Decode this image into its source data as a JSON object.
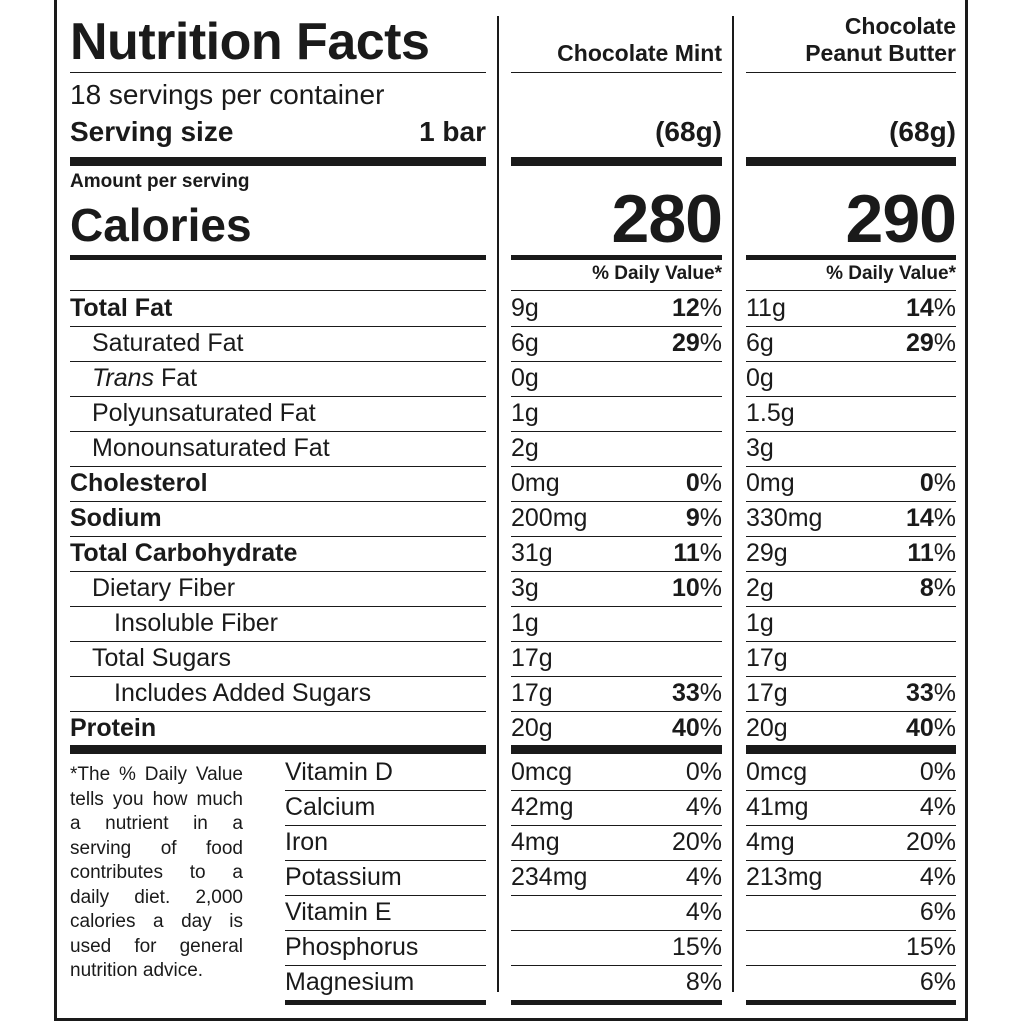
{
  "label": {
    "title": "Nutrition Facts",
    "servings_per_container": "18 servings per container",
    "serving_size_label": "Serving size",
    "serving_size_value": "1 bar",
    "amount_per_serving": "Amount per serving",
    "calories_label": "Calories",
    "daily_value_header": "% Daily Value*"
  },
  "products": [
    {
      "name": "Chocolate Mint",
      "serving_size": "(68g)",
      "calories": "280"
    },
    {
      "name_line1": "Chocolate",
      "name_line2": "Peanut Butter",
      "serving_size": "(68g)",
      "calories": "290"
    }
  ],
  "nutrients": [
    {
      "name": "Total Fat",
      "a_amt": "9g",
      "a_dv": "12",
      "b_amt": "11g",
      "b_dv": "14"
    },
    {
      "name": "Saturated Fat",
      "a_amt": "6g",
      "a_dv": "29",
      "b_amt": "6g",
      "b_dv": "29"
    },
    {
      "name_italic": "Trans",
      "name_rest": " Fat",
      "a_amt": "0g",
      "b_amt": "0g"
    },
    {
      "name": "Polyunsaturated Fat",
      "a_amt": "1g",
      "b_amt": "1.5g"
    },
    {
      "name": "Monounsaturated Fat",
      "a_amt": "2g",
      "b_amt": "3g"
    },
    {
      "name": "Cholesterol",
      "a_amt": "0mg",
      "a_dv": "0",
      "b_amt": "0mg",
      "b_dv": "0"
    },
    {
      "name": "Sodium",
      "a_amt": "200mg",
      "a_dv": "9",
      "b_amt": "330mg",
      "b_dv": "14"
    },
    {
      "name": "Total Carbohydrate",
      "a_amt": "31g",
      "a_dv": "11",
      "b_amt": "29g",
      "b_dv": "11"
    },
    {
      "name": "Dietary Fiber",
      "a_amt": "3g",
      "a_dv": "10",
      "b_amt": "2g",
      "b_dv": "8"
    },
    {
      "name": "Insoluble Fiber",
      "a_amt": "1g",
      "b_amt": "1g"
    },
    {
      "name": "Total Sugars",
      "a_amt": "17g",
      "b_amt": "17g"
    },
    {
      "name": "Includes Added Sugars",
      "a_amt": "17g",
      "a_dv": "33",
      "b_amt": "17g",
      "b_dv": "33"
    },
    {
      "name": "Protein",
      "a_amt": "20g",
      "a_dv": "40",
      "b_amt": "20g",
      "b_dv": "40"
    }
  ],
  "percent_sign": "%",
  "vitamins": [
    {
      "name": "Vitamin D",
      "a_amt": "0mcg",
      "a_dv": "0%",
      "b_amt": "0mcg",
      "b_dv": "0%"
    },
    {
      "name": "Calcium",
      "a_amt": "42mg",
      "a_dv": "4%",
      "b_amt": "41mg",
      "b_dv": "4%"
    },
    {
      "name": "Iron",
      "a_amt": "4mg",
      "a_dv": "20%",
      "b_amt": "4mg",
      "b_dv": "20%"
    },
    {
      "name": "Potassium",
      "a_amt": "234mg",
      "a_dv": "4%",
      "b_amt": "213mg",
      "b_dv": "4%"
    },
    {
      "name": "Vitamin E",
      "a_amt": "",
      "a_dv": "4%",
      "b_amt": "",
      "b_dv": "6%"
    },
    {
      "name": "Phosphorus",
      "a_amt": "",
      "a_dv": "15%",
      "b_amt": "",
      "b_dv": "15%"
    },
    {
      "name": "Magnesium",
      "a_amt": "",
      "a_dv": "8%",
      "b_amt": "",
      "b_dv": "6%"
    }
  ],
  "footnote": "*The % Daily Value tells you how much a nutrient in a serving of food contributes to a daily diet. 2,000 calories a day is used for general nutrition advice."
}
